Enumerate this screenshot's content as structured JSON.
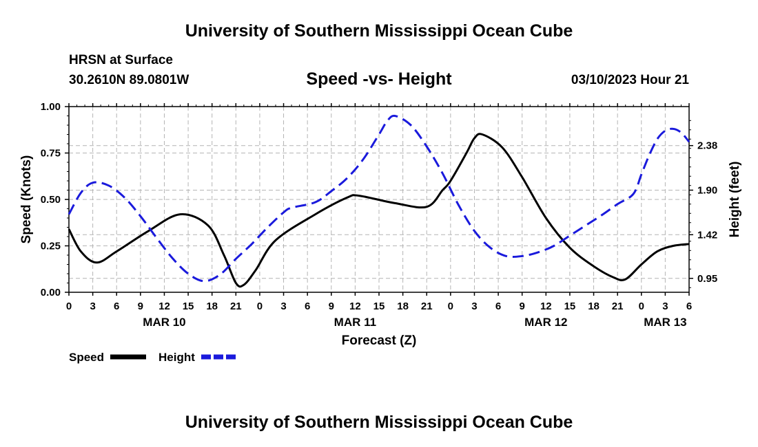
{
  "title": "University of Southern Mississippi Ocean Cube",
  "footer_title": "University of Southern Mississippi Ocean Cube",
  "station": "HRSN at Surface",
  "coords": "30.2610N  89.0801W",
  "subtitle": "Speed -vs- Height",
  "datetime": "03/10/2023 Hour 21",
  "colors": {
    "speed": "#000000",
    "height": "#1a1adc",
    "grid": "#b4b4b4"
  },
  "chart_data": {
    "type": "line",
    "title": "Speed -vs- Height",
    "xlabel": "Forecast (Z)",
    "ylabel": "Speed (Knots)",
    "y2label": "Height (feet)",
    "x_range_hours": [
      0,
      78
    ],
    "x_ticks": [
      {
        "h": 0,
        "label": "0"
      },
      {
        "h": 3,
        "label": "3"
      },
      {
        "h": 6,
        "label": "6"
      },
      {
        "h": 9,
        "label": "9"
      },
      {
        "h": 12,
        "label": "12"
      },
      {
        "h": 15,
        "label": "15"
      },
      {
        "h": 18,
        "label": "18"
      },
      {
        "h": 21,
        "label": "21"
      },
      {
        "h": 24,
        "label": "0"
      },
      {
        "h": 27,
        "label": "3"
      },
      {
        "h": 30,
        "label": "6"
      },
      {
        "h": 33,
        "label": "9"
      },
      {
        "h": 36,
        "label": "12"
      },
      {
        "h": 39,
        "label": "15"
      },
      {
        "h": 42,
        "label": "18"
      },
      {
        "h": 45,
        "label": "21"
      },
      {
        "h": 48,
        "label": "0"
      },
      {
        "h": 51,
        "label": "3"
      },
      {
        "h": 54,
        "label": "6"
      },
      {
        "h": 57,
        "label": "9"
      },
      {
        "h": 60,
        "label": "12"
      },
      {
        "h": 63,
        "label": "15"
      },
      {
        "h": 66,
        "label": "18"
      },
      {
        "h": 69,
        "label": "21"
      },
      {
        "h": 72,
        "label": "0"
      },
      {
        "h": 75,
        "label": "3"
      },
      {
        "h": 78,
        "label": "6"
      }
    ],
    "date_labels": [
      {
        "h": 12,
        "label": "MAR 10"
      },
      {
        "h": 36,
        "label": "MAR 11"
      },
      {
        "h": 60,
        "label": "MAR 12"
      },
      {
        "h": 75,
        "label": "MAR 13"
      }
    ],
    "ylim": [
      0,
      1.0
    ],
    "y_ticks": [
      {
        "v": 0.0,
        "label": "0.00"
      },
      {
        "v": 0.25,
        "label": "0.25"
      },
      {
        "v": 0.5,
        "label": "0.50"
      },
      {
        "v": 0.75,
        "label": "0.75"
      },
      {
        "v": 1.0,
        "label": "1.00"
      }
    ],
    "y2lim": [
      0.8,
      2.8
    ],
    "y2_ticks": [
      {
        "v": 0.95,
        "label": "0.95"
      },
      {
        "v": 1.42,
        "label": "1.42"
      },
      {
        "v": 1.9,
        "label": "1.90"
      },
      {
        "v": 2.38,
        "label": "2.38"
      }
    ],
    "legend": [
      {
        "name": "Speed",
        "style": "solid"
      },
      {
        "name": "Height",
        "style": "dashed"
      }
    ],
    "series": [
      {
        "name": "Speed",
        "axis": "left",
        "x": [
          0,
          1.5,
          3.5,
          6,
          10,
          14,
          17.5,
          19.5,
          21,
          22,
          23.5,
          26,
          31,
          35,
          36.5,
          41,
          45,
          47,
          48,
          50,
          51,
          52,
          54.5,
          57,
          60,
          63,
          66,
          68.5,
          70,
          72,
          74,
          76,
          78
        ],
        "y": [
          0.34,
          0.22,
          0.16,
          0.22,
          0.33,
          0.42,
          0.36,
          0.2,
          0.05,
          0.04,
          0.12,
          0.28,
          0.42,
          0.51,
          0.52,
          0.48,
          0.46,
          0.55,
          0.6,
          0.75,
          0.83,
          0.85,
          0.78,
          0.62,
          0.4,
          0.24,
          0.14,
          0.08,
          0.07,
          0.15,
          0.22,
          0.25,
          0.26
        ]
      },
      {
        "name": "Height",
        "axis": "right",
        "x": [
          0,
          1.5,
          3,
          5,
          7,
          9,
          11,
          13,
          15,
          17,
          19,
          21,
          23,
          25,
          27,
          28,
          31,
          33,
          35,
          37,
          39,
          40,
          41,
          43,
          45,
          47,
          49,
          51,
          53,
          55,
          57,
          59,
          61,
          63,
          65,
          67,
          69,
          71,
          72,
          73,
          74,
          75,
          76,
          77,
          78
        ],
        "y": [
          1.64,
          1.87,
          1.98,
          1.95,
          1.82,
          1.62,
          1.39,
          1.17,
          1.0,
          0.92,
          0.99,
          1.16,
          1.32,
          1.5,
          1.66,
          1.71,
          1.77,
          1.89,
          2.03,
          2.23,
          2.5,
          2.64,
          2.7,
          2.6,
          2.37,
          2.08,
          1.74,
          1.46,
          1.28,
          1.19,
          1.19,
          1.23,
          1.3,
          1.41,
          1.52,
          1.63,
          1.75,
          1.86,
          2.07,
          2.28,
          2.45,
          2.54,
          2.56,
          2.52,
          2.42
        ]
      }
    ]
  }
}
